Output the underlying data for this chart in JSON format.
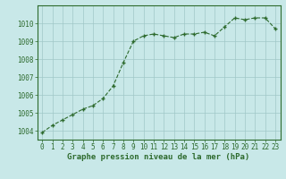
{
  "x": [
    0,
    1,
    2,
    3,
    4,
    5,
    6,
    7,
    8,
    9,
    10,
    11,
    12,
    13,
    14,
    15,
    16,
    17,
    18,
    19,
    20,
    21,
    22,
    23
  ],
  "y": [
    1003.9,
    1004.3,
    1004.6,
    1004.9,
    1005.2,
    1005.4,
    1005.8,
    1006.5,
    1007.8,
    1009.0,
    1009.3,
    1009.4,
    1009.3,
    1009.2,
    1009.4,
    1009.4,
    1009.5,
    1009.3,
    1009.8,
    1010.3,
    1010.2,
    1010.3,
    1010.3,
    1009.7
  ],
  "line_color": "#2d6a2d",
  "marker_color": "#2d6a2d",
  "bg_color": "#c8e8e8",
  "grid_color": "#a0c8c8",
  "text_color": "#2d6a2d",
  "title": "Graphe pression niveau de la mer (hPa)",
  "ylim": [
    1003.5,
    1011.0
  ],
  "yticks": [
    1004,
    1005,
    1006,
    1007,
    1008,
    1009,
    1010
  ],
  "xticks": [
    0,
    1,
    2,
    3,
    4,
    5,
    6,
    7,
    8,
    9,
    10,
    11,
    12,
    13,
    14,
    15,
    16,
    17,
    18,
    19,
    20,
    21,
    22,
    23
  ],
  "tick_fontsize": 5.5,
  "title_fontsize": 6.5
}
